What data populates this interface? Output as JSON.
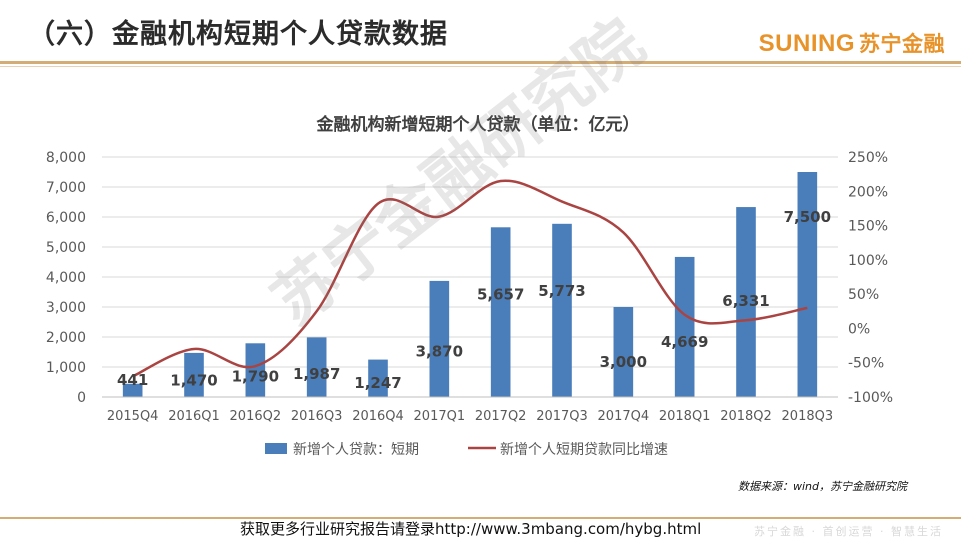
{
  "header": {
    "title": "（六）金融机构短期个人贷款数据",
    "brand_en": "SUNING",
    "brand_cn": "苏宁金融"
  },
  "chart_data": {
    "type": "bar",
    "title": "金融机构新增短期个人贷款（单位：亿元）",
    "categories": [
      "2015Q4",
      "2016Q1",
      "2016Q2",
      "2016Q3",
      "2016Q4",
      "2017Q1",
      "2017Q2",
      "2017Q3",
      "2017Q4",
      "2018Q1",
      "2018Q2",
      "2018Q3"
    ],
    "series": [
      {
        "name": "新增个人贷款：短期",
        "type": "bar",
        "axis": "left",
        "color": "#4a7ebb",
        "values": [
          441,
          1470,
          1790,
          1987,
          1247,
          3870,
          5657,
          5773,
          3000,
          4669,
          6331,
          7500
        ]
      },
      {
        "name": "新增个人短期贷款同比增速",
        "type": "line",
        "axis": "right",
        "color": "#a94442",
        "values": [
          -70,
          -30,
          -55,
          25,
          182,
          163,
          215,
          185,
          140,
          20,
          12,
          30
        ]
      }
    ],
    "data_labels": [
      "441",
      "1,470",
      "1,790",
      "1,987",
      "1,247",
      "3,870",
      "5,657",
      "5,773",
      "3,000",
      "4,669",
      "6,331",
      "7,500"
    ],
    "y_left": {
      "ylim": [
        0,
        8000
      ],
      "ticks": [
        "0",
        "1,000",
        "2,000",
        "3,000",
        "4,000",
        "5,000",
        "6,000",
        "7,000",
        "8,000"
      ]
    },
    "y_right": {
      "ylim": [
        -100,
        250
      ],
      "ticks": [
        "-100%",
        "-50%",
        "0%",
        "50%",
        "100%",
        "150%",
        "200%",
        "250%"
      ]
    },
    "grid": true,
    "legend_position": "bottom"
  },
  "watermark": "苏宁金融研究院",
  "source": "数据来源：wind，苏宁金融研究院",
  "footer": {
    "note": "获取更多行业研究报告请登录http://www.3mbang.com/hybg.html",
    "slogan": "苏宁金融 · 首创运营 · 智慧生活"
  }
}
